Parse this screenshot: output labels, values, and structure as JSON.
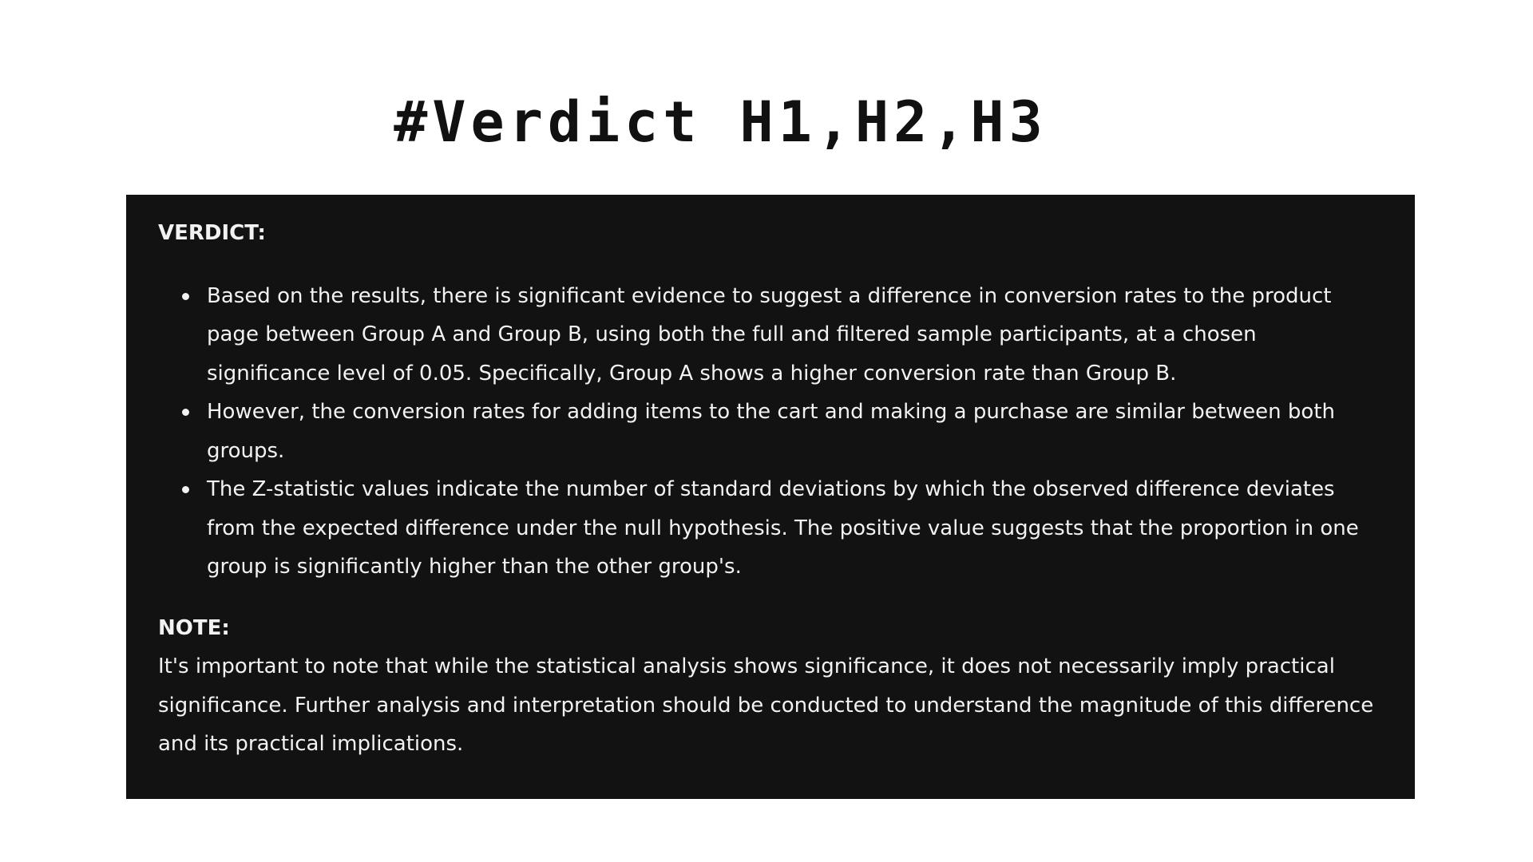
{
  "title": "#Verdict H1,H2,H3",
  "verdict": {
    "heading": "VERDICT:",
    "items": [
      "Based on the results, there is significant evidence to suggest a difference in conversion rates to the product page between Group A and Group B, using both the full and filtered sample participants, at a chosen significance level of 0.05. Specifically, Group A shows a higher conversion rate than Group B.",
      "However, the conversion rates for adding items to the cart and making a purchase are similar between both groups.",
      "The Z-statistic values indicate the number of standard deviations by which the observed difference deviates from the expected difference under the null hypothesis. The positive value suggests that the proportion in one group is significantly higher than the other group's."
    ]
  },
  "note": {
    "heading": "NOTE:",
    "body": "It's important to note that while the statistical analysis shows significance, it does not necessarily imply practical significance. Further analysis and interpretation should be conducted to understand the magnitude of this difference and its practical implications."
  },
  "colors": {
    "panel_background": "#121212",
    "panel_text": "#f2f2f2",
    "page_background": "#ffffff"
  }
}
